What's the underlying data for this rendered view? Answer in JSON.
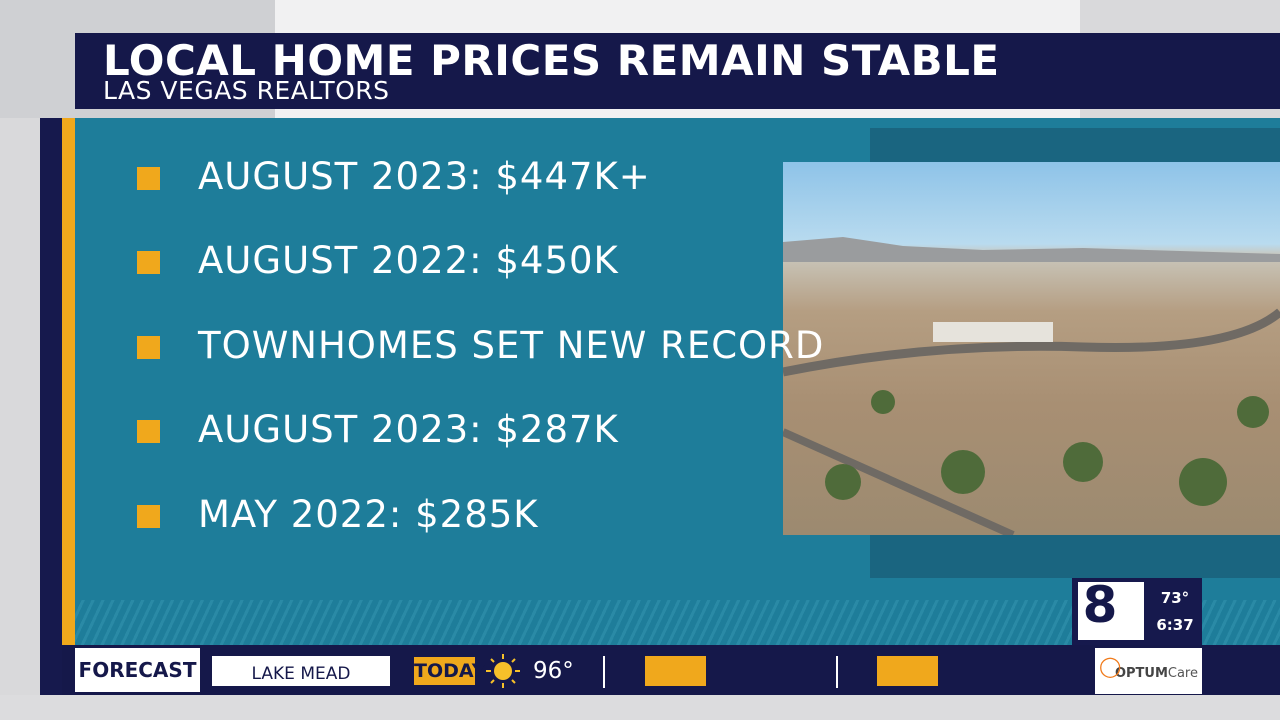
{
  "header": {
    "title": "LOCAL HOME PRICES REMAIN STABLE",
    "subtitle": "LAS VEGAS REALTORS"
  },
  "bullets": [
    "AUGUST 2023: $447K+",
    "AUGUST 2022: $450K",
    "TOWNHOMES SET NEW RECORD",
    "AUGUST 2023: $287K",
    "MAY 2022: $285K"
  ],
  "bug": {
    "logo": "8",
    "temperature": "73°",
    "time": "6:37"
  },
  "ticker": {
    "section": "FORECAST",
    "location": "LAKE MEAD",
    "day": "TODAY",
    "high": "96°",
    "sponsor_brand": "OPTUM",
    "sponsor_suffix": "Care"
  }
}
